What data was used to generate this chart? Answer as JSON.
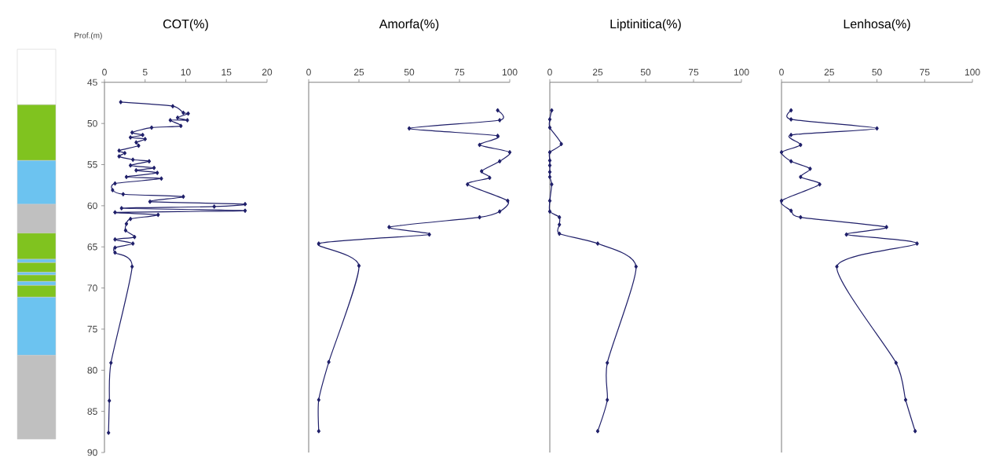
{
  "chart_data": [
    {
      "type": "line",
      "title": "COT(%)",
      "ylabel": "Prof.(m)",
      "color": "#20206a",
      "marker": "diamond",
      "line_style": "solid",
      "xlim": [
        0,
        20
      ],
      "xticks": [
        0,
        5,
        10,
        15,
        20
      ],
      "ylim": [
        90,
        45
      ],
      "yticks": [
        45,
        50,
        55,
        60,
        65,
        70,
        75,
        80,
        85,
        90
      ],
      "x": [
        2.0,
        8.4,
        9.7,
        10.3,
        9.0,
        10.2,
        8.1,
        9.4,
        5.8,
        3.4,
        4.7,
        3.2,
        5.0,
        3.9,
        4.2,
        1.8,
        2.5,
        1.8,
        3.5,
        5.5,
        3.2,
        6.1,
        3.9,
        6.5,
        2.7,
        7.0,
        1.3,
        1.0,
        2.3,
        9.7,
        5.6,
        17.3,
        13.5,
        2.1,
        17.3,
        1.3,
        6.6,
        3.2,
        2.7,
        2.6,
        3.7,
        1.3,
        3.5,
        1.3,
        1.3,
        3.4,
        0.8,
        0.6,
        0.5
      ],
      "values": [
        47.4,
        47.9,
        48.7,
        48.8,
        49.3,
        49.6,
        49.6,
        50.3,
        50.5,
        51.1,
        51.4,
        51.7,
        51.9,
        52.3,
        52.7,
        53.3,
        53.6,
        54.0,
        54.4,
        54.6,
        55.1,
        55.4,
        55.7,
        56.0,
        56.5,
        56.7,
        57.3,
        58.1,
        58.6,
        58.9,
        59.5,
        59.8,
        60.1,
        60.3,
        60.6,
        60.8,
        61.1,
        61.6,
        62.2,
        63.0,
        63.8,
        64.1,
        64.6,
        65.1,
        65.7,
        67.4,
        79.1,
        83.7,
        87.6
      ]
    },
    {
      "type": "line",
      "title": "Amorfa(%)",
      "color": "#20206a",
      "marker": "diamond",
      "line_style": "solid",
      "xlim": [
        0,
        100
      ],
      "xticks": [
        0,
        25,
        50,
        75,
        100
      ],
      "ylim": [
        90,
        45
      ],
      "tick_labels": "x",
      "x": [
        94,
        95,
        50,
        94,
        85,
        100,
        95,
        86,
        90,
        79,
        99,
        95,
        85,
        40,
        60,
        5,
        25,
        10,
        5,
        5
      ],
      "values": [
        48.4,
        49.6,
        50.6,
        51.5,
        52.6,
        53.5,
        54.6,
        55.8,
        56.6,
        57.4,
        59.4,
        60.7,
        61.4,
        62.6,
        63.5,
        64.6,
        67.3,
        79.0,
        83.6,
        87.4
      ]
    },
    {
      "type": "line",
      "title": "Liptinitica(%)",
      "color": "#20206a",
      "marker": "diamond",
      "line_style": "solid",
      "xlim": [
        0,
        100
      ],
      "xticks": [
        0,
        25,
        50,
        75,
        100
      ],
      "ylim": [
        90,
        45
      ],
      "tick_labels": "x",
      "x": [
        1,
        0,
        0,
        6,
        0,
        0,
        0,
        0,
        0,
        1,
        0,
        0,
        5,
        5,
        5,
        25,
        45,
        30,
        30,
        25
      ],
      "values": [
        48.4,
        49.5,
        50.5,
        52.5,
        53.5,
        54.5,
        55.1,
        55.9,
        56.5,
        57.4,
        59.4,
        60.7,
        61.4,
        62.3,
        63.4,
        64.6,
        67.4,
        79.1,
        83.6,
        87.4
      ]
    },
    {
      "type": "line",
      "title": "Lenhosa(%)",
      "color": "#20206a",
      "marker": "diamond",
      "line_style": "solid",
      "xlim": [
        0,
        100
      ],
      "xticks": [
        0,
        25,
        50,
        75,
        100
      ],
      "ylim": [
        90,
        45
      ],
      "tick_labels": "x",
      "x": [
        5,
        5,
        50,
        5,
        10,
        0,
        5,
        15,
        10,
        20,
        0,
        5,
        10,
        55,
        34,
        71,
        29,
        60,
        65,
        70
      ],
      "values": [
        48.4,
        49.5,
        50.6,
        51.4,
        52.6,
        53.5,
        54.6,
        55.5,
        56.5,
        57.4,
        59.4,
        60.6,
        61.4,
        62.6,
        63.5,
        64.6,
        67.4,
        79.1,
        83.6,
        87.4
      ]
    }
  ]
}
